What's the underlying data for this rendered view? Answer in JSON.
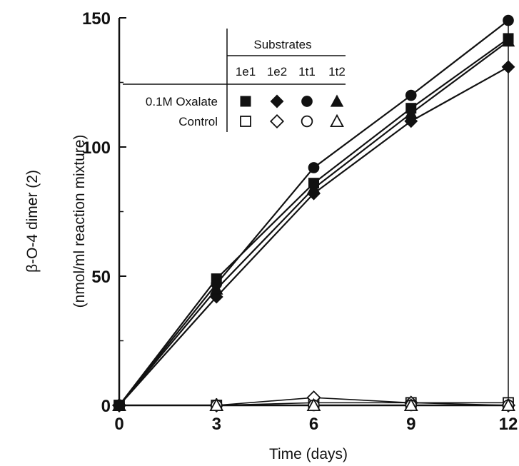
{
  "chart_data": {
    "type": "line",
    "xlabel": "Time (days)",
    "ylabel_line1": "β-O-4 dimer (2)",
    "ylabel_line2": "(nmol/ml reaction mixture)",
    "x": [
      0,
      3,
      6,
      9,
      12
    ],
    "xlim": [
      0,
      12
    ],
    "ylim": [
      0,
      150
    ],
    "x_ticks": [
      "0",
      "3",
      "6",
      "9",
      "12"
    ],
    "y_ticks": [
      "0",
      "50",
      "100",
      "150"
    ],
    "grid": false,
    "legend": {
      "placement": "top-center",
      "header": "Substrates",
      "substrates": [
        "1e1",
        "1e2",
        "1t1",
        "1t2"
      ],
      "rows": [
        "0.1M Oxalate",
        "Control"
      ]
    },
    "series": [
      {
        "name": "1e1",
        "group": "0.1M Oxalate",
        "marker": "square",
        "filled": true,
        "values": [
          0,
          49,
          86,
          115,
          142
        ]
      },
      {
        "name": "1e2",
        "group": "0.1M Oxalate",
        "marker": "diamond",
        "filled": true,
        "values": [
          0,
          42,
          82,
          110,
          131
        ]
      },
      {
        "name": "1t1",
        "group": "0.1M Oxalate",
        "marker": "circle",
        "filled": true,
        "values": [
          0,
          47,
          92,
          120,
          149
        ]
      },
      {
        "name": "1t2",
        "group": "0.1M Oxalate",
        "marker": "triangle",
        "filled": true,
        "values": [
          0,
          45,
          84,
          113,
          141
        ]
      },
      {
        "name": "1e1",
        "group": "Control",
        "marker": "square",
        "filled": false,
        "values": [
          0,
          0,
          1,
          1,
          1
        ]
      },
      {
        "name": "1e2",
        "group": "Control",
        "marker": "diamond",
        "filled": false,
        "values": [
          0,
          0,
          3,
          1,
          0
        ]
      },
      {
        "name": "1t1",
        "group": "Control",
        "marker": "circle",
        "filled": false,
        "values": [
          0,
          0,
          0,
          0,
          0
        ]
      },
      {
        "name": "1t2",
        "group": "Control",
        "marker": "triangle",
        "filled": false,
        "values": [
          0,
          0,
          0,
          0,
          0
        ]
      }
    ]
  }
}
